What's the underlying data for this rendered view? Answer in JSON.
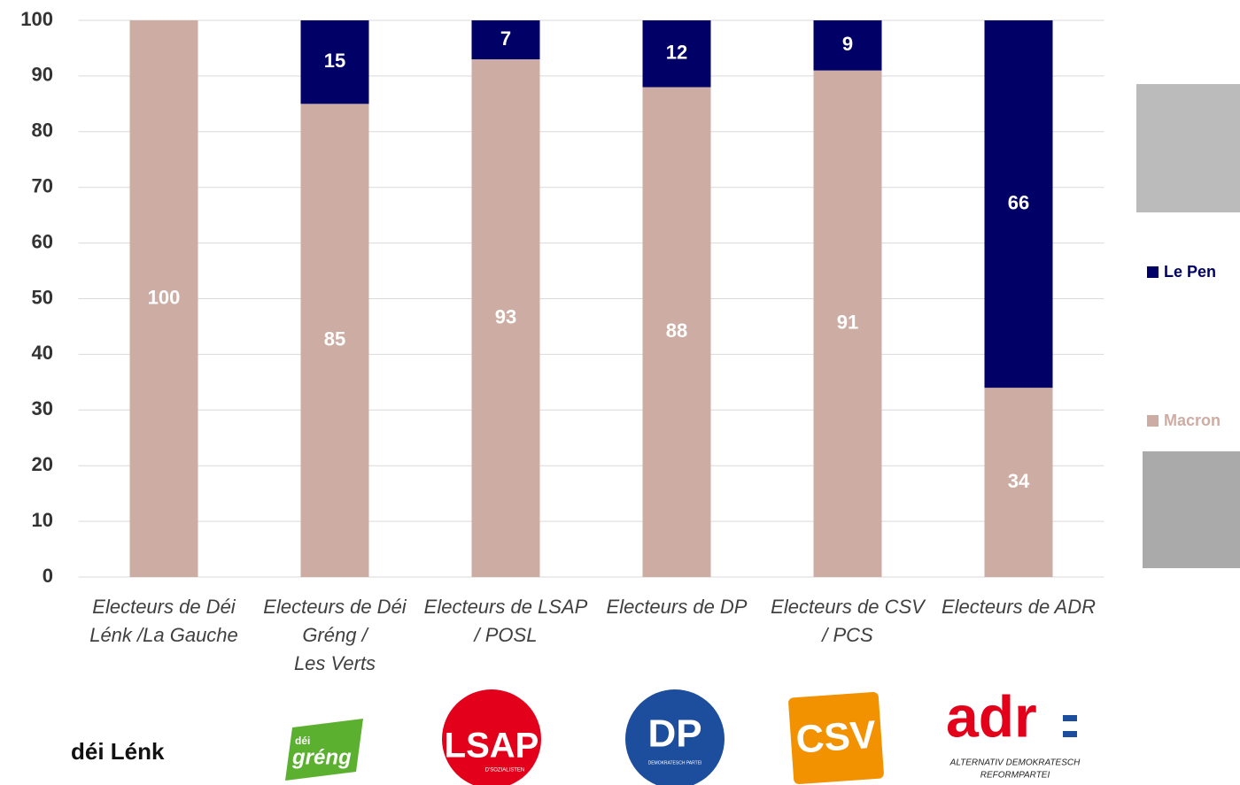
{
  "chart_data": {
    "type": "stacked_bar",
    "categories": [
      "Electeurs de Déi\nLénk /La Gauche",
      "Electeurs de Déi\nGréng /\nLes Verts",
      "Electeurs de LSAP\n/  POSL",
      "Electeurs de DP",
      "Electeurs de CSV\n/ PCS",
      "Electeurs de ADR"
    ],
    "series": [
      {
        "name": "Macron",
        "color": "#cdaca3",
        "values": [
          100,
          85,
          93,
          88,
          91,
          34
        ]
      },
      {
        "name": "Le Pen",
        "color": "#000066",
        "values": [
          null,
          15,
          7,
          12,
          9,
          66
        ]
      }
    ],
    "ylim": [
      0,
      100
    ],
    "yticks": [
      0,
      10,
      20,
      30,
      40,
      50,
      60,
      70,
      80,
      90,
      100
    ],
    "grid": true,
    "legend": "right",
    "logos": [
      {
        "text": "déi Lénk"
      },
      {
        "small": "déi",
        "text": "gréng"
      },
      {
        "text": "LSAP",
        "sub": "D'SOZIALISTEN"
      },
      {
        "text": "DP",
        "sub": "DEMOKRATESCH PARTEI"
      },
      {
        "text": "CSV"
      },
      {
        "text": "adr",
        "sub": [
          "ALTERNATIV DEMOKRATESCH",
          "REFORMPARTEI"
        ]
      }
    ]
  }
}
